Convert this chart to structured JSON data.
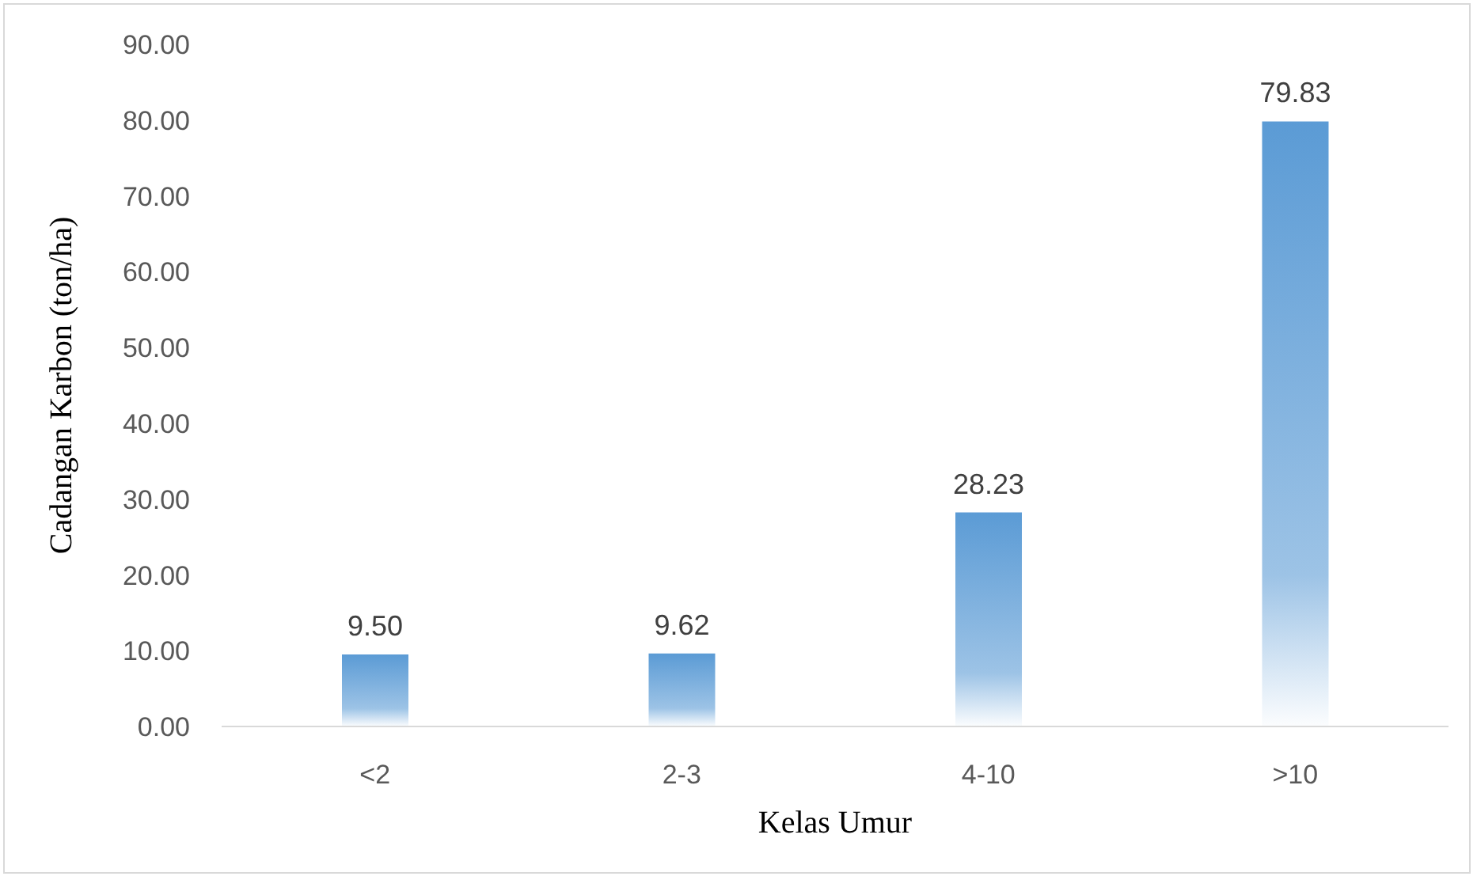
{
  "chart_data": {
    "type": "bar",
    "xlabel": "Kelas Umur",
    "ylabel": "Cadangan  Karbon (ton/ha)",
    "categories": [
      "<2",
      "2-3",
      "4-10",
      ">10"
    ],
    "values": [
      9.5,
      9.62,
      28.23,
      79.83
    ],
    "value_labels": [
      "9.50",
      "9.62",
      "28.23",
      "79.83"
    ],
    "color": "#5b9bd5",
    "ylim": [
      0,
      90
    ],
    "yticks": [
      {
        "value": 0,
        "label": "0.00"
      },
      {
        "value": 10,
        "label": "10.00"
      },
      {
        "value": 20,
        "label": "20.00"
      },
      {
        "value": 30,
        "label": "30.00"
      },
      {
        "value": 40,
        "label": "40.00"
      },
      {
        "value": 50,
        "label": "50.00"
      },
      {
        "value": 60,
        "label": "60.00"
      },
      {
        "value": 70,
        "label": "70.00"
      },
      {
        "value": 80,
        "label": "80.00"
      },
      {
        "value": 90,
        "label": "90.00"
      }
    ],
    "grid": false,
    "legend": false
  }
}
